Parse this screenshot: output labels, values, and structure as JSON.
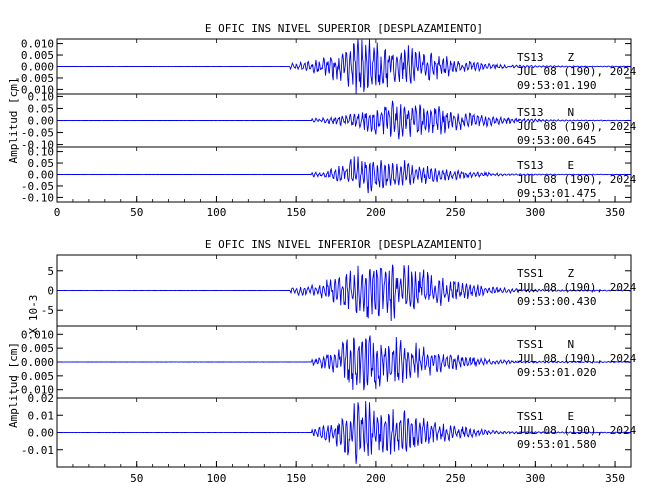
{
  "chart_data": [
    {
      "type": "line",
      "title": "E OFIC INS NIVEL SUPERIOR [DESPLAZAMIENTO]",
      "ylabel": "Amplitud [cm]",
      "xlim": [
        0,
        360
      ],
      "x_ticks": [
        "0",
        "50",
        "100",
        "150",
        "200",
        "250",
        "300",
        "350"
      ],
      "series_color": "#0000ee",
      "traces": [
        {
          "station": "TS13",
          "component": "Z",
          "date": "JUL 08 (190), 2024",
          "time": "09:53:01.190",
          "ylim": [
            -0.012,
            0.012
          ],
          "y_ticks": [
            "0.010",
            "0.005",
            "0.000",
            "-0.005",
            "-0.010"
          ],
          "y_tick_values": [
            0.01,
            0.005,
            0.0,
            -0.005,
            -0.01
          ],
          "onset_s": 146,
          "peak_s": 190,
          "peak_amp": 0.012,
          "seed": 11
        },
        {
          "station": "TS13",
          "component": "N",
          "date": "JUL 08 (190), 2024",
          "time": "09:53:00.645",
          "ylim": [
            -0.11,
            0.11
          ],
          "y_ticks": [
            "0.10",
            "0.05",
            "0.00",
            "-0.05",
            "-0.10"
          ],
          "y_tick_values": [
            0.1,
            0.05,
            0.0,
            -0.05,
            -0.1
          ],
          "onset_s": 160,
          "peak_s": 210,
          "peak_amp": 0.08,
          "seed": 23
        },
        {
          "station": "TS13",
          "component": "E",
          "date": "JUL 08 (190), 2024",
          "time": "09:53:01.475",
          "ylim": [
            -0.12,
            0.12
          ],
          "y_ticks": [
            "0.10",
            "0.05",
            "0.00",
            "-0.05",
            "-0.10"
          ],
          "y_tick_values": [
            0.1,
            0.05,
            0.0,
            -0.05,
            -0.1
          ],
          "onset_s": 160,
          "peak_s": 188,
          "peak_amp": 0.08,
          "seed": 37
        }
      ]
    },
    {
      "type": "line",
      "title": "E OFIC INS NIVEL INFERIOR [DESPLAZAMIENTO]",
      "ylabel": "Amplitud [cm]",
      "xlim": [
        0,
        360
      ],
      "x_ticks": [
        "50",
        "100",
        "150",
        "200",
        "250",
        "300",
        "350"
      ],
      "series_color": "#0000ee",
      "traces": [
        {
          "station": "TSS1",
          "component": "Z",
          "date": "JUL 08 (190), 2024",
          "time": "09:53:00.430",
          "scale_label": "X 10-3",
          "ylim": [
            -9,
            9
          ],
          "y_ticks": [
            "5",
            "0",
            "-5"
          ],
          "y_tick_values": [
            5,
            0,
            -5
          ],
          "onset_s": 146,
          "peak_s": 195,
          "peak_amp": 8.0,
          "seed": 41
        },
        {
          "station": "TSS1",
          "component": "N",
          "date": "JUL 08 (190), 2024",
          "time": "09:53:01.020",
          "ylim": [
            -0.013,
            0.013
          ],
          "y_ticks": [
            "0.010",
            "0.005",
            "0.000",
            "-0.005",
            "-0.010"
          ],
          "y_tick_values": [
            0.01,
            0.005,
            0.0,
            -0.005,
            -0.01
          ],
          "onset_s": 160,
          "peak_s": 185,
          "peak_amp": 0.012,
          "seed": 53
        },
        {
          "station": "TSS1",
          "component": "E",
          "date": "JUL 08 (190), 2024",
          "time": "09:53:01.580",
          "ylim": [
            -0.02,
            0.02
          ],
          "y_ticks": [
            "0.02",
            "0.01",
            "0.00",
            "-0.01"
          ],
          "y_tick_values": [
            0.02,
            0.01,
            0.0,
            -0.01
          ],
          "onset_s": 160,
          "peak_s": 183,
          "peak_amp": 0.019,
          "seed": 67
        }
      ]
    }
  ]
}
